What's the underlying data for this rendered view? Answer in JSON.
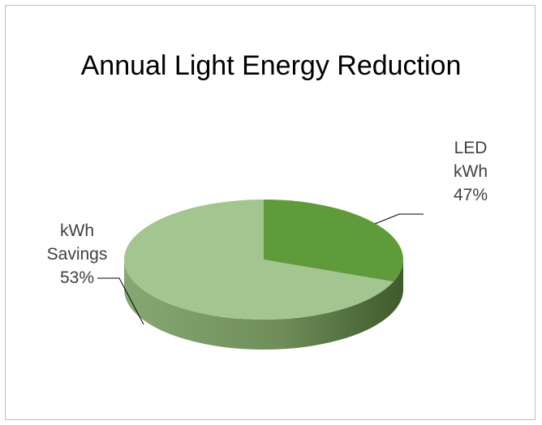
{
  "chart_data": {
    "type": "pie",
    "title": "Annual Light Energy Reduction",
    "slices": [
      {
        "category": "LED",
        "unit": "kWh",
        "percent_label": "47%",
        "value": 47,
        "color": "#609b3b"
      },
      {
        "category": "kWh",
        "unit": "Savings",
        "percent_label": "53%",
        "value": 53,
        "color": "#a3c58f"
      }
    ],
    "style": "3d"
  }
}
